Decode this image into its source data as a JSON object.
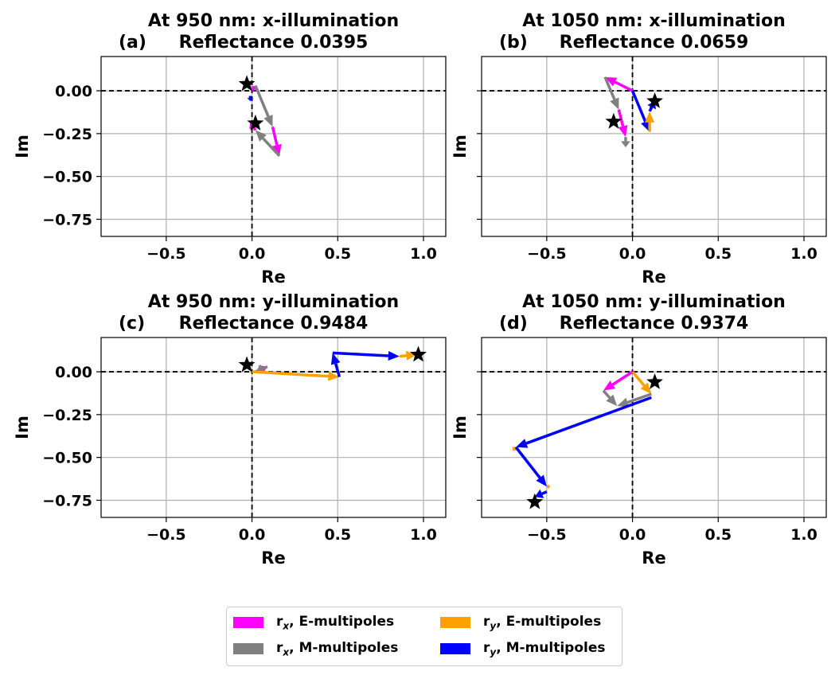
{
  "colors": {
    "rx_E": "#ff00ff",
    "rx_M": "#808080",
    "ry_E": "#ffa000",
    "ry_M": "#0000ff",
    "star": "#000000",
    "grid": "#b0b0b0"
  },
  "legend": {
    "items": [
      {
        "sym": "r",
        "sub": "x",
        "text": ", E-multipoles",
        "color": "#ff00ff"
      },
      {
        "sym": "r",
        "sub": "x",
        "text": ", M-multipoles",
        "color": "#808080"
      },
      {
        "sym": "r",
        "sub": "y",
        "text": ", E-multipoles",
        "color": "#ffa000"
      },
      {
        "sym": "r",
        "sub": "y",
        "text": ", M-multipoles",
        "color": "#0000ff"
      }
    ]
  },
  "chart_data": [
    {
      "type": "quiver",
      "panel_label": "(a)",
      "title_line1": "At 950 nm: x-illumination",
      "title_line2": "Reflectance 0.0395",
      "xlabel": "Re",
      "ylabel": "Im",
      "xlim": [
        -0.88,
        1.13
      ],
      "ylim": [
        -0.85,
        0.2
      ],
      "xticks": [
        -0.5,
        0.0,
        0.5,
        1.0
      ],
      "xtick_labels": [
        "−0.5",
        "0.0",
        "0.5",
        "1.0"
      ],
      "yticks": [
        0.0,
        -0.25,
        -0.5,
        -0.75
      ],
      "ytick_labels": [
        "0.00",
        "−0.25",
        "−0.50",
        "−0.75"
      ],
      "show_yticklabels": true,
      "arrows": [
        {
          "series": "rx_E",
          "from": [
            0,
            0
          ],
          "to": [
            0.02,
            0.03
          ]
        },
        {
          "series": "rx_M",
          "from": [
            0.02,
            0.03
          ],
          "to": [
            0.12,
            -0.21
          ]
        },
        {
          "series": "rx_E",
          "from": [
            0.12,
            -0.21
          ],
          "to": [
            0.16,
            -0.38
          ]
        },
        {
          "series": "rx_M",
          "from": [
            0.16,
            -0.38
          ],
          "to": [
            0.02,
            -0.23
          ]
        },
        {
          "series": "rx_E",
          "from": [
            0.02,
            -0.23
          ],
          "to": [
            -0.01,
            -0.18
          ]
        },
        {
          "series": "ry_M",
          "from": [
            -0.01,
            -0.03
          ],
          "to": [
            -0.01,
            -0.06
          ]
        }
      ],
      "stars": [
        [
          -0.03,
          0.04
        ],
        [
          0.02,
          -0.19
        ]
      ]
    },
    {
      "type": "quiver",
      "panel_label": "(b)",
      "title_line1": "At 1050 nm: x-illumination",
      "title_line2": "Reflectance 0.0659",
      "xlabel": "Re",
      "ylabel": "Im",
      "xlim": [
        -0.88,
        1.13
      ],
      "ylim": [
        -0.85,
        0.2
      ],
      "xticks": [
        -0.5,
        0.0,
        0.5,
        1.0
      ],
      "xtick_labels": [
        "−0.5",
        "0.0",
        "0.5",
        "1.0"
      ],
      "yticks": [
        0.0,
        -0.25,
        -0.5,
        -0.75
      ],
      "ytick_labels": [
        "0.00",
        "−0.25",
        "−0.50",
        "−0.75"
      ],
      "show_yticklabels": false,
      "arrows": [
        {
          "series": "rx_E",
          "from": [
            0,
            0
          ],
          "to": [
            -0.16,
            0.08
          ]
        },
        {
          "series": "rx_M",
          "from": [
            -0.16,
            0.08
          ],
          "to": [
            -0.08,
            -0.11
          ]
        },
        {
          "series": "rx_E",
          "from": [
            -0.08,
            -0.11
          ],
          "to": [
            -0.04,
            -0.27
          ]
        },
        {
          "series": "rx_M",
          "from": [
            -0.04,
            -0.27
          ],
          "to": [
            -0.04,
            -0.33
          ]
        },
        {
          "series": "ry_M",
          "from": [
            0,
            0
          ],
          "to": [
            0.1,
            -0.24
          ]
        },
        {
          "series": "ry_E",
          "from": [
            0.1,
            -0.24
          ],
          "to": [
            0.1,
            -0.12
          ]
        },
        {
          "series": "ry_M",
          "from": [
            0.1,
            -0.12
          ],
          "to": [
            0.13,
            -0.06
          ]
        }
      ],
      "stars": [
        [
          -0.11,
          -0.18
        ],
        [
          0.13,
          -0.06
        ]
      ]
    },
    {
      "type": "quiver",
      "panel_label": "(c)",
      "title_line1": "At 950 nm: y-illumination",
      "title_line2": "Reflectance 0.9484",
      "xlabel": "Re",
      "ylabel": "Im",
      "xlim": [
        -0.88,
        1.13
      ],
      "ylim": [
        -0.85,
        0.2
      ],
      "xticks": [
        -0.5,
        0.0,
        0.5,
        1.0
      ],
      "xtick_labels": [
        "−0.5",
        "0.0",
        "0.5",
        "1.0"
      ],
      "yticks": [
        0.0,
        -0.25,
        -0.5,
        -0.75
      ],
      "ytick_labels": [
        "0.00",
        "−0.25",
        "−0.50",
        "−0.75"
      ],
      "show_yticklabels": true,
      "arrows": [
        {
          "series": "rx_E",
          "from": [
            0.02,
            0.0
          ],
          "to": [
            0.09,
            0.03
          ]
        },
        {
          "series": "rx_M",
          "from": [
            0.09,
            0.03
          ],
          "to": [
            0.02,
            0.0
          ]
        },
        {
          "series": "ry_E",
          "from": [
            0,
            0
          ],
          "to": [
            0.51,
            -0.03
          ]
        },
        {
          "series": "ry_M",
          "from": [
            0.51,
            -0.03
          ],
          "to": [
            0.47,
            0.11
          ]
        },
        {
          "series": "ry_E",
          "from": [
            0.47,
            0.11
          ],
          "to": [
            0.47,
            0.11
          ]
        },
        {
          "series": "ry_M",
          "from": [
            0.47,
            0.11
          ],
          "to": [
            0.86,
            0.09
          ]
        },
        {
          "series": "ry_E",
          "from": [
            0.86,
            0.09
          ],
          "to": [
            0.96,
            0.1
          ]
        }
      ],
      "stars": [
        [
          -0.03,
          0.04
        ],
        [
          0.97,
          0.1
        ]
      ]
    },
    {
      "type": "quiver",
      "panel_label": "(d)",
      "title_line1": "At 1050 nm: y-illumination",
      "title_line2": "Reflectance 0.9374",
      "xlabel": "Re",
      "ylabel": "Im",
      "xlim": [
        -0.88,
        1.13
      ],
      "ylim": [
        -0.85,
        0.2
      ],
      "xticks": [
        -0.5,
        0.0,
        0.5,
        1.0
      ],
      "xtick_labels": [
        "−0.5",
        "0.0",
        "0.5",
        "1.0"
      ],
      "yticks": [
        0.0,
        -0.25,
        -0.5,
        -0.75
      ],
      "ytick_labels": [
        "0.00",
        "−0.25",
        "−0.50",
        "−0.75"
      ],
      "show_yticklabels": false,
      "arrows": [
        {
          "series": "rx_E",
          "from": [
            0,
            0
          ],
          "to": [
            -0.17,
            -0.11
          ]
        },
        {
          "series": "rx_M",
          "from": [
            -0.17,
            -0.11
          ],
          "to": [
            -0.09,
            -0.2
          ]
        },
        {
          "series": "ry_E",
          "from": [
            0,
            0
          ],
          "to": [
            0.11,
            -0.13
          ]
        },
        {
          "series": "rx_M",
          "from": [
            0.11,
            -0.13
          ],
          "to": [
            -0.09,
            -0.2
          ]
        },
        {
          "series": "ry_M",
          "from": [
            0.11,
            -0.15
          ],
          "to": [
            -0.68,
            -0.44
          ]
        },
        {
          "series": "ry_E",
          "from": [
            -0.68,
            -0.44
          ],
          "to": [
            -0.7,
            -0.46
          ]
        },
        {
          "series": "ry_M",
          "from": [
            -0.68,
            -0.44
          ],
          "to": [
            -0.5,
            -0.67
          ]
        },
        {
          "series": "ry_E",
          "from": [
            -0.5,
            -0.67
          ],
          "to": [
            -0.48,
            -0.67
          ]
        },
        {
          "series": "ry_M",
          "from": [
            -0.5,
            -0.7
          ],
          "to": [
            -0.57,
            -0.73
          ]
        }
      ],
      "stars": [
        [
          0.13,
          -0.06
        ],
        [
          -0.57,
          -0.76
        ]
      ]
    }
  ]
}
